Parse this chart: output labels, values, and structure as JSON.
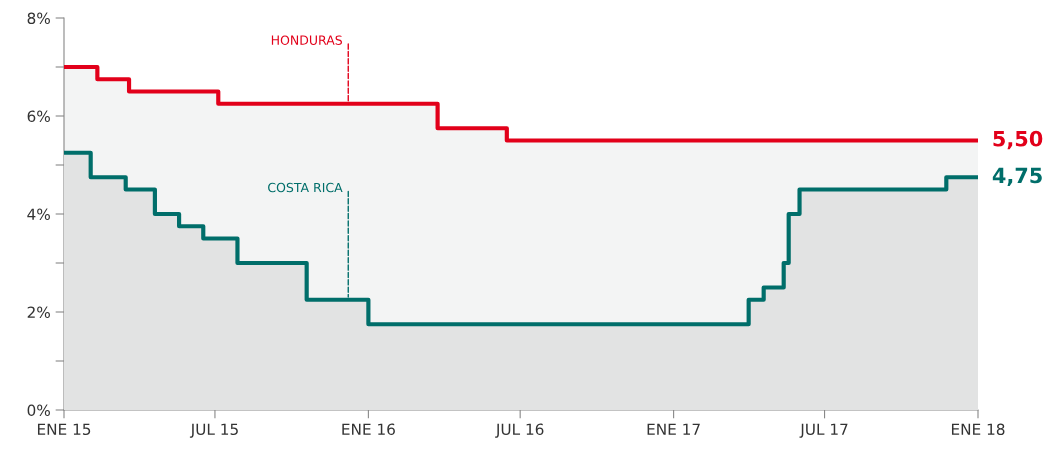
{
  "chart_data": {
    "type": "step",
    "series": [
      {
        "type": "area",
        "color": "#f3f4f4",
        "x": [
          "2015-01-01",
          "2015-02-10",
          "2015-03-20",
          "2015-07-05",
          "2016-03-24",
          "2016-06-15",
          "2018-01-01"
        ],
        "values": [
          7.0,
          6.75,
          6.5,
          6.25,
          5.75,
          5.5,
          5.5
        ]
      },
      {
        "type": "area",
        "color": "#e2e3e3",
        "x": [
          "2015-01-01",
          "2015-02-02",
          "2015-03-16",
          "2015-04-20",
          "2015-05-19",
          "2015-06-17",
          "2015-07-28",
          "2015-10-19",
          "2016-01-01",
          "2017-04-01",
          "2017-04-19",
          "2017-05-13",
          "2017-05-19",
          "2017-06-01",
          "2017-11-24",
          "2018-01-01"
        ],
        "values": [
          5.25,
          4.75,
          4.5,
          4.0,
          3.75,
          3.5,
          3.0,
          2.25,
          1.75,
          2.25,
          2.5,
          3.0,
          4.0,
          4.5,
          4.75,
          4.75
        ]
      },
      {
        "name": "HONDURAS",
        "color": "#e2001a",
        "x": [
          "2015-01-01",
          "2015-02-10",
          "2015-03-20",
          "2015-07-05",
          "2016-03-24",
          "2016-06-15",
          "2018-01-01"
        ],
        "values": [
          7.0,
          6.75,
          6.5,
          6.25,
          5.75,
          5.5,
          5.5
        ],
        "value_labels": [
          null,
          null,
          null,
          null,
          null,
          null,
          "5,50"
        ]
      },
      {
        "name": "COSTA RICA",
        "color": "#006e6a",
        "x": [
          "2015-01-01",
          "2015-02-02",
          "2015-03-16",
          "2015-04-20",
          "2015-05-19",
          "2015-06-17",
          "2015-07-28",
          "2015-10-19",
          "2016-01-01",
          "2017-04-01",
          "2017-04-19",
          "2017-05-13",
          "2017-05-19",
          "2017-06-01",
          "2017-11-24",
          "2018-01-01"
        ],
        "values": [
          5.25,
          4.75,
          4.5,
          4.0,
          3.75,
          3.5,
          3.0,
          2.25,
          1.75,
          2.25,
          2.5,
          3.0,
          4.0,
          4.5,
          4.75,
          4.75
        ],
        "value_labels": [
          null,
          null,
          null,
          null,
          null,
          null,
          null,
          null,
          null,
          null,
          null,
          null,
          null,
          null,
          null,
          "4,75"
        ]
      }
    ],
    "xlim": [
      "2015-01-01",
      "2018-01-01"
    ],
    "xticks": [
      {
        "value": "2015-01-01",
        "label": "ENE 15"
      },
      {
        "value": "2015-07-01",
        "label": "JUL 15"
      },
      {
        "value": "2016-01-01",
        "label": "ENE 16"
      },
      {
        "value": "2016-07-01",
        "label": "JUL 16"
      },
      {
        "value": "2017-01-01",
        "label": "ENE 17"
      },
      {
        "value": "2017-07-01",
        "label": "JUL 17"
      },
      {
        "value": "2018-01-01",
        "label": "ENE 18"
      }
    ],
    "ylim": [
      0,
      8
    ],
    "yticks": [
      {
        "value": 0,
        "label": "0%"
      },
      {
        "value": 1,
        "label": null
      },
      {
        "value": 2,
        "label": "2%"
      },
      {
        "value": 3,
        "label": null
      },
      {
        "value": 4,
        "label": "4%"
      },
      {
        "value": 5,
        "label": null
      },
      {
        "value": 6,
        "label": "6%"
      },
      {
        "value": 7,
        "label": null
      },
      {
        "value": 8,
        "label": "8%"
      }
    ],
    "grid": false,
    "legend": false
  }
}
